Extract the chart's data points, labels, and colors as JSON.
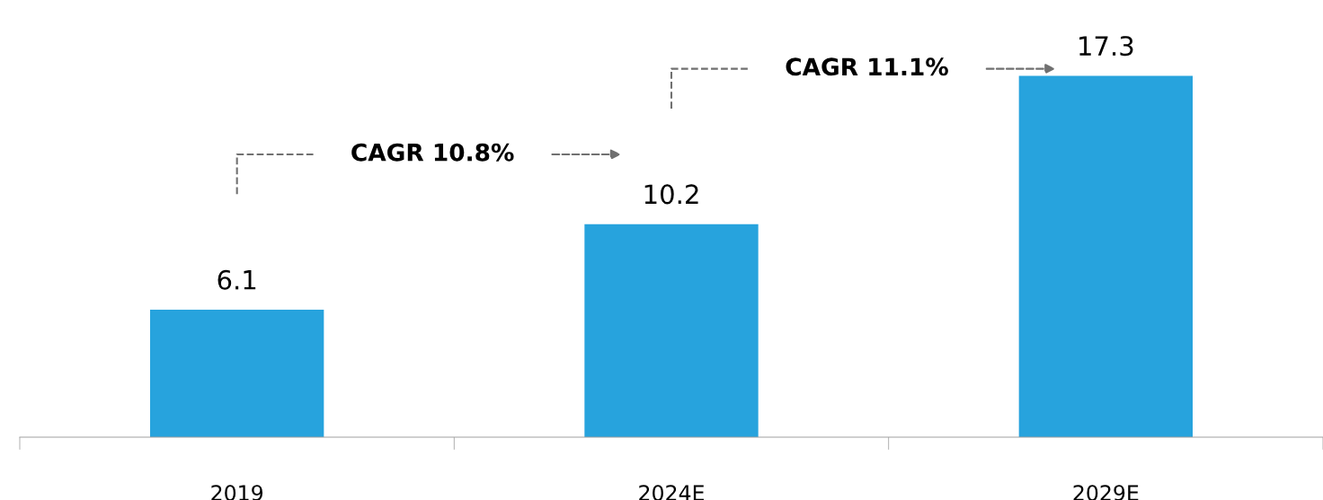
{
  "chart_data": {
    "type": "bar",
    "categories": [
      "2019",
      "2024E",
      "2029E"
    ],
    "values": [
      6.1,
      10.2,
      17.3
    ],
    "color": "#27a3dd",
    "data_labels": true,
    "grid": false,
    "annotations": [
      "CAGR 10.8%",
      "CAGR 11.1%"
    ]
  }
}
